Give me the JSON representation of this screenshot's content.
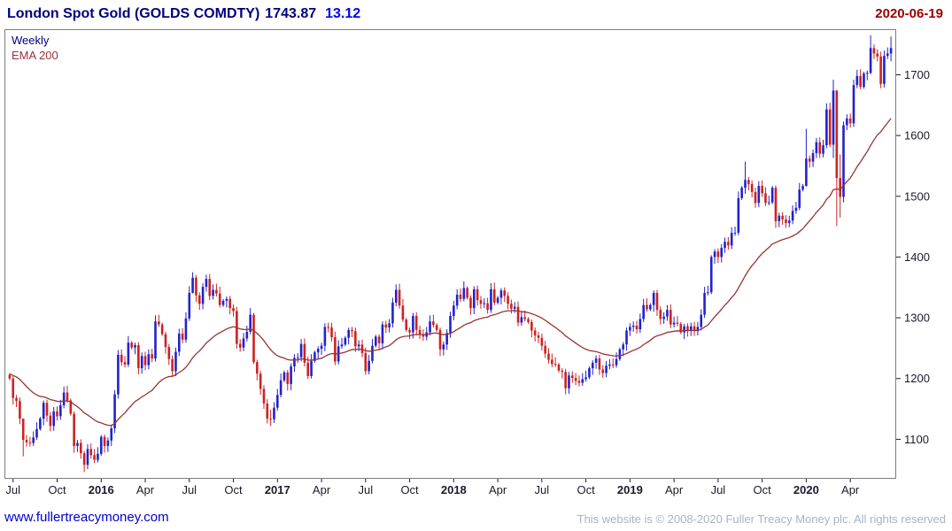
{
  "header": {
    "title": "London Spot Gold (GOLDS COMDTY)",
    "last_price": "1743.87",
    "change": "13.12",
    "date": "2020-06-19"
  },
  "legend": {
    "timeframe": "Weekly",
    "overlay": "EMA 200"
  },
  "footer": {
    "site_link": "www.fullertreacymoney.com",
    "copyright": "This website is © 2008-2020 Fuller Treacy Money plc. All rights reserved"
  },
  "colors": {
    "up_candle": "#2222cc",
    "down_candle": "#cc2222",
    "ema_line": "#993333",
    "title_text": "#000080",
    "change_text": "#0000ee",
    "date_text": "#990000",
    "axis_text": "#1a1a2e",
    "plot_border": "#7d7d7d",
    "link_text": "#0000cc",
    "copyright_text": "#a9b3c2"
  },
  "chart_data": {
    "type": "candlestick",
    "title": "London Spot Gold (GOLDS COMDTY)",
    "timeframe": "Weekly",
    "last_close": 1743.87,
    "change": 13.12,
    "as_of_date": "2020-06-19",
    "xlabel": "",
    "ylabel": "",
    "ylim": [
      1035,
      1775
    ],
    "y_ticks": [
      1100,
      1200,
      1300,
      1400,
      1500,
      1600,
      1700
    ],
    "grid": false,
    "legend_position": "top-left",
    "legend_entries": [
      "Weekly",
      "EMA 200"
    ],
    "x_ticks": [
      {
        "index": 1,
        "label": "Jul",
        "bold": false
      },
      {
        "index": 14,
        "label": "Oct",
        "bold": false
      },
      {
        "index": 27,
        "label": "2016",
        "bold": true
      },
      {
        "index": 40,
        "label": "Apr",
        "bold": false
      },
      {
        "index": 53,
        "label": "Jul",
        "bold": false
      },
      {
        "index": 66,
        "label": "Oct",
        "bold": false
      },
      {
        "index": 79,
        "label": "2017",
        "bold": true
      },
      {
        "index": 92,
        "label": "Apr",
        "bold": false
      },
      {
        "index": 105,
        "label": "Jul",
        "bold": false
      },
      {
        "index": 118,
        "label": "Oct",
        "bold": false
      },
      {
        "index": 131,
        "label": "2018",
        "bold": true
      },
      {
        "index": 144,
        "label": "Apr",
        "bold": false
      },
      {
        "index": 157,
        "label": "Jul",
        "bold": false
      },
      {
        "index": 170,
        "label": "Oct",
        "bold": false
      },
      {
        "index": 183,
        "label": "2019",
        "bold": true
      },
      {
        "index": 196,
        "label": "Apr",
        "bold": false
      },
      {
        "index": 209,
        "label": "Jul",
        "bold": false
      },
      {
        "index": 222,
        "label": "Oct",
        "bold": false
      },
      {
        "index": 235,
        "label": "2020",
        "bold": true
      },
      {
        "index": 248,
        "label": "Apr",
        "bold": false
      }
    ],
    "weekly_closes": [
      1200,
      1168,
      1163,
      1134,
      1099,
      1095,
      1094,
      1103,
      1117,
      1134,
      1160,
      1139,
      1122,
      1146,
      1138,
      1156,
      1177,
      1164,
      1142,
      1089,
      1094,
      1077,
      1058,
      1084,
      1074,
      1066,
      1076,
      1104,
      1089,
      1098,
      1118,
      1174,
      1239,
      1227,
      1223,
      1259,
      1251,
      1255,
      1217,
      1237,
      1222,
      1240,
      1233,
      1294,
      1289,
      1273,
      1252,
      1232,
      1212,
      1244,
      1274,
      1264,
      1299,
      1341,
      1366,
      1337,
      1323,
      1351,
      1364,
      1336,
      1346,
      1340,
      1321,
      1328,
      1331,
      1316,
      1311,
      1257,
      1251,
      1266,
      1277,
      1305,
      1227,
      1208,
      1183,
      1159,
      1134,
      1133,
      1152,
      1173,
      1197,
      1210,
      1191,
      1220,
      1234,
      1235,
      1257,
      1226,
      1204,
      1229,
      1243,
      1249,
      1254,
      1285,
      1284,
      1268,
      1228,
      1253,
      1256,
      1267,
      1280,
      1278,
      1253,
      1256,
      1242,
      1212,
      1229,
      1254,
      1269,
      1258,
      1289,
      1284,
      1291,
      1325,
      1346,
      1320,
      1297,
      1280,
      1276,
      1303,
      1280,
      1273,
      1269,
      1276,
      1294,
      1288,
      1280,
      1248,
      1256,
      1275,
      1303,
      1320,
      1338,
      1331,
      1349,
      1333,
      1316,
      1347,
      1329,
      1323,
      1324,
      1313,
      1347,
      1325,
      1333,
      1345,
      1336,
      1323,
      1315,
      1318,
      1292,
      1301,
      1298,
      1293,
      1279,
      1271,
      1267,
      1254,
      1241,
      1231,
      1224,
      1223,
      1213,
      1211,
      1184,
      1205,
      1201,
      1196,
      1193,
      1199,
      1202,
      1217,
      1226,
      1233,
      1215,
      1209,
      1221,
      1223,
      1222,
      1232,
      1248,
      1256,
      1279,
      1285,
      1287,
      1281,
      1298,
      1321,
      1314,
      1321,
      1341,
      1313,
      1298,
      1302,
      1313,
      1289,
      1292,
      1290,
      1276,
      1286,
      1279,
      1286,
      1278,
      1285,
      1305,
      1341,
      1342,
      1400,
      1409,
      1400,
      1415,
      1425,
      1419,
      1440,
      1440,
      1497,
      1514,
      1527,
      1520,
      1507,
      1489,
      1517,
      1505,
      1489,
      1490,
      1514,
      1459,
      1468,
      1462,
      1456,
      1460,
      1476,
      1481,
      1511,
      1517,
      1562,
      1557,
      1571,
      1589,
      1570,
      1584,
      1643,
      1585,
      1674,
      1530,
      1499,
      1617,
      1628,
      1620,
      1683,
      1698,
      1680,
      1702,
      1703,
      1744,
      1735,
      1730,
      1685,
      1731,
      1735,
      1744
    ],
    "wick_overrides": {
      "4": [
        1105,
        1072
      ],
      "22": [
        1081,
        1046
      ],
      "54": [
        1375,
        1340
      ],
      "77": [
        1149,
        1122
      ],
      "217": [
        1557,
        1504
      ],
      "235": [
        1611,
        1516
      ],
      "243": [
        1692,
        1563
      ],
      "244": [
        1675,
        1451
      ],
      "245": [
        1569,
        1465
      ],
      "254": [
        1765,
        1701
      ],
      "260": [
        1763,
        1722
      ]
    },
    "overlays": [
      {
        "name": "EMA 200",
        "type": "ema",
        "color": "#993333"
      }
    ]
  }
}
